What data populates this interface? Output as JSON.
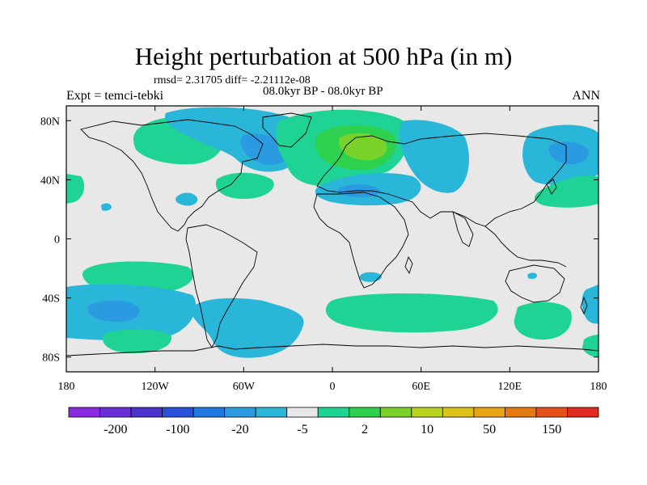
{
  "header": {
    "title": "Height perturbation at 500 hPa (in m)",
    "stats": "rmsd= 2.31705 diff= -2.21112e-08",
    "period": "08.0kyr BP - 08.0kyr BP",
    "experiment": "Expt = temci-tebki",
    "season": "ANN"
  },
  "axes": {
    "lat_labels": [
      "80N",
      "40N",
      "0",
      "40S",
      "80S"
    ],
    "lat_values": [
      80,
      40,
      0,
      -40,
      -80
    ],
    "lon_labels": [
      "180",
      "120W",
      "60W",
      "0",
      "60E",
      "120E",
      "180"
    ],
    "lon_values": [
      -180,
      -120,
      -60,
      0,
      60,
      120,
      180
    ],
    "lon_range": [
      -180,
      180
    ],
    "lat_range": [
      -90,
      90
    ]
  },
  "colorbar": {
    "labels": [
      "-200",
      "-100",
      "-20",
      "-5",
      "2",
      "10",
      "50",
      "150"
    ],
    "colors": [
      "#8a2be2",
      "#6a2ed6",
      "#4b32cc",
      "#2a4fd8",
      "#1f78e0",
      "#2a9be0",
      "#29b6d9",
      "#e8e8e8",
      "#1fd394",
      "#2ed14d",
      "#78d22a",
      "#b9d21f",
      "#dcc21a",
      "#e5a515",
      "#e57a12",
      "#e4501a",
      "#e02a22"
    ]
  },
  "colors": {
    "background": "#e8e8e8",
    "neg_light": "#29b6d9",
    "neg_mid": "#2a9be0",
    "pos_light": "#1fd394",
    "pos_mid": "#2ed14d",
    "pos_high": "#78d22a",
    "coast": "#000000"
  }
}
